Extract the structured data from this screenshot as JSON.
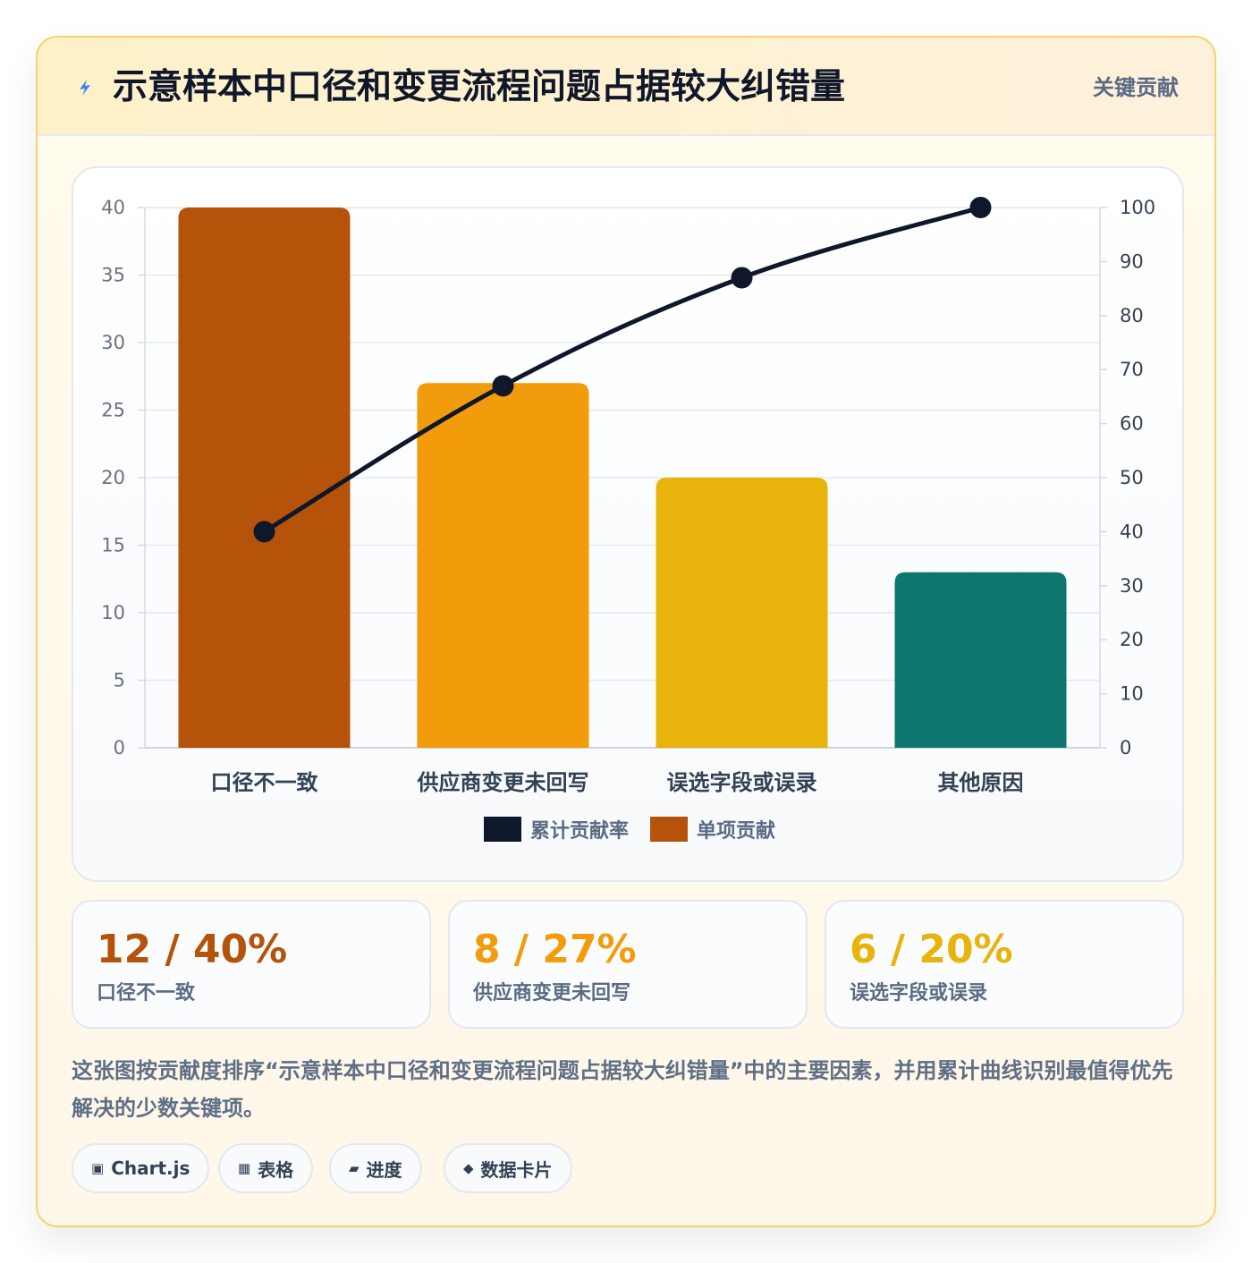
{
  "header": {
    "title": "示意样本中口径和变更流程问题占据较大纠错量",
    "tag": "关键贡献"
  },
  "chart_data": {
    "type": "bar",
    "categories": [
      "口径不一致",
      "供应商变更未回写",
      "误选字段或误录",
      "其他原因"
    ],
    "series": [
      {
        "name": "单项贡献",
        "type": "bar",
        "axis": "left",
        "values": [
          40,
          27,
          20,
          13
        ]
      },
      {
        "name": "累计贡献率",
        "type": "line",
        "axis": "right",
        "values": [
          40,
          67,
          87,
          100
        ]
      }
    ],
    "bar_colors": [
      "#b45309",
      "#f39c0b",
      "#e8b30a",
      "#0f766e"
    ],
    "line_color": "#0f172a",
    "left_axis": {
      "min": 0,
      "max": 40,
      "step": 5
    },
    "right_axis": {
      "min": 0,
      "max": 100,
      "step": 10
    },
    "legend": {
      "position": "bottom",
      "items": [
        {
          "label": "累计贡献率",
          "color": "#0f172a"
        },
        {
          "label": "单项贡献",
          "color": "#b45309"
        }
      ]
    },
    "grid": true
  },
  "stats": [
    {
      "value": "12 / 40%",
      "label": "口径不一致",
      "color": "#b45309"
    },
    {
      "value": "8 / 27%",
      "label": "供应商变更未回写",
      "color": "#f39c0b"
    },
    {
      "value": "6 / 20%",
      "label": "误选字段或误录",
      "color": "#e8b30a"
    }
  ],
  "description": "这张图按贡献度排序“示意样本中口径和变更流程问题占据较大纠错量”中的主要因素，并用累计曲线识别最值得优先解决的少数关键项。",
  "chips": [
    {
      "icon": "▣",
      "icon_name": "chart-icon",
      "label": "Chart.js"
    },
    {
      "icon": "▦",
      "icon_name": "table-icon",
      "label": "表格"
    },
    {
      "icon": "▰",
      "icon_name": "progress-icon",
      "label": "进度"
    },
    {
      "icon": "◆",
      "icon_name": "data-card-icon",
      "label": "数据卡片"
    }
  ]
}
